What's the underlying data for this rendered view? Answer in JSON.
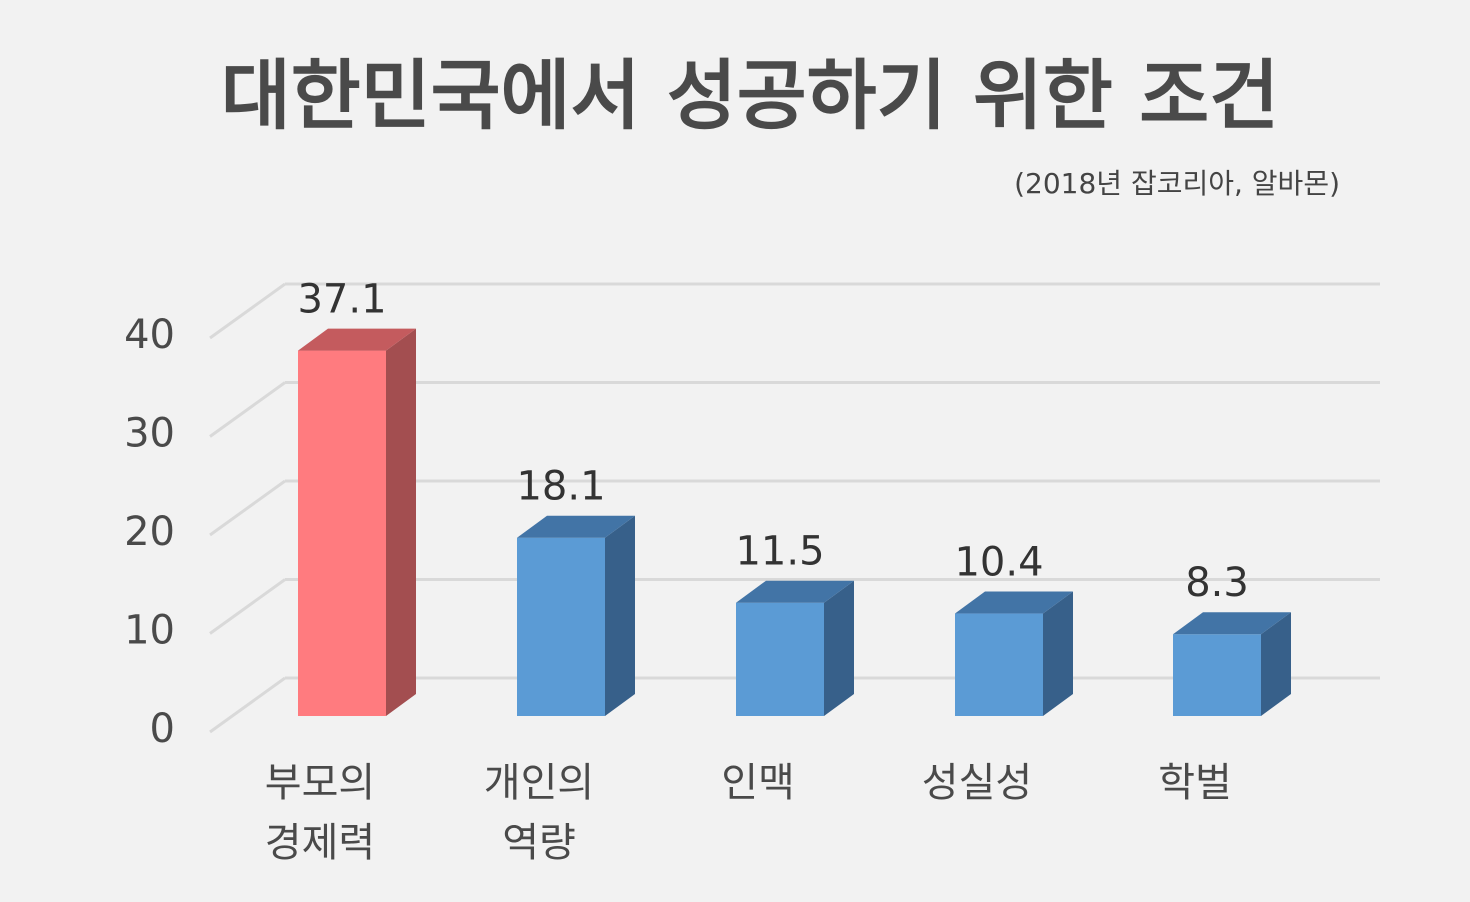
{
  "chart_data": {
    "type": "bar",
    "title": "대한민국에서 성공하기 위한 조건",
    "subtitle": "(2018년 잡코리아, 알바몬)",
    "categories": [
      [
        "부모의",
        "경제력"
      ],
      [
        "개인의",
        "역량"
      ],
      [
        "인맥"
      ],
      [
        "성실성"
      ],
      [
        "학벌"
      ]
    ],
    "values": [
      37.1,
      18.1,
      11.5,
      10.4,
      8.3
    ],
    "value_labels": [
      "37.1",
      "18.1",
      "11.5",
      "10.4",
      "8.3"
    ],
    "yticks": [
      "0",
      "10",
      "20",
      "30",
      "40"
    ],
    "ylim": [
      0,
      40
    ],
    "grid": true,
    "style": "3d-column",
    "colors": {
      "highlight_front": "#ff7b7f",
      "highlight_side": "#a34e50",
      "highlight_top": "#c45b5e",
      "normal_front": "#5b9bd5",
      "normal_side": "#37608a",
      "normal_top": "#4274a6",
      "grid": "#d9d9d9"
    },
    "highlight_index": 0
  }
}
